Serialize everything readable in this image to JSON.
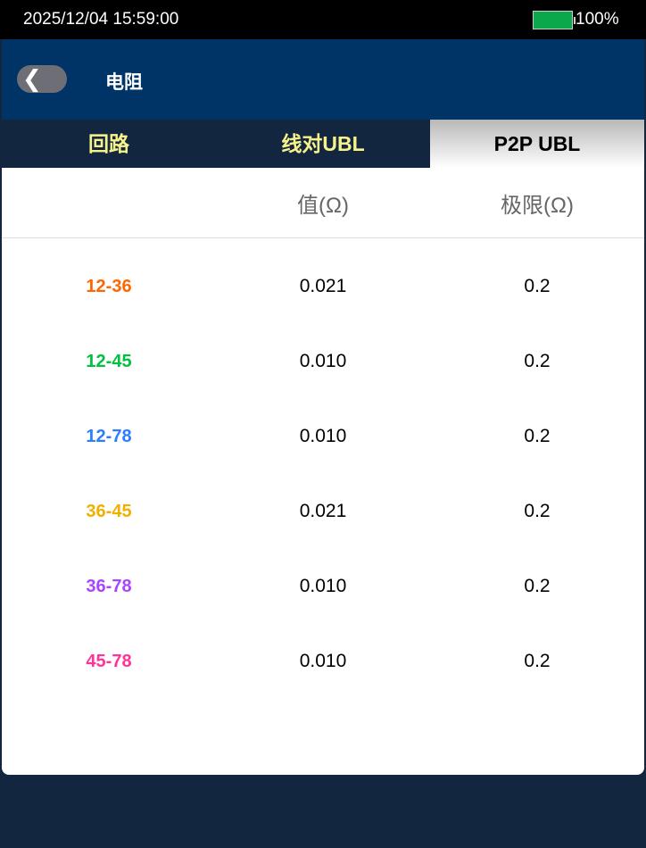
{
  "status": {
    "datetime": "2025/12/04 15:59:00",
    "battery": "100%",
    "battery_color": "#0aa84a"
  },
  "header": {
    "back_icon": "chevron-left-icon",
    "title": "电阻"
  },
  "tabs": [
    {
      "label": "回路"
    },
    {
      "label": "线对UBL"
    },
    {
      "label": "P2P UBL",
      "active": true
    }
  ],
  "table": {
    "headers": [
      "",
      "值(Ω)",
      "极限(Ω)"
    ],
    "rows": [
      {
        "pair": "12-36",
        "value": "0.021",
        "limit": "0.2",
        "color": "#ff6600"
      },
      {
        "pair": "12-45",
        "value": "0.010",
        "limit": "0.2",
        "color": "#00c040"
      },
      {
        "pair": "12-78",
        "value": "0.010",
        "limit": "0.2",
        "color": "#2a7fff"
      },
      {
        "pair": "36-45",
        "value": "0.021",
        "limit": "0.2",
        "color": "#f0b000"
      },
      {
        "pair": "36-78",
        "value": "0.010",
        "limit": "0.2",
        "color": "#aa44ff"
      },
      {
        "pair": "45-78",
        "value": "0.010",
        "limit": "0.2",
        "color": "#ff3399"
      }
    ]
  }
}
